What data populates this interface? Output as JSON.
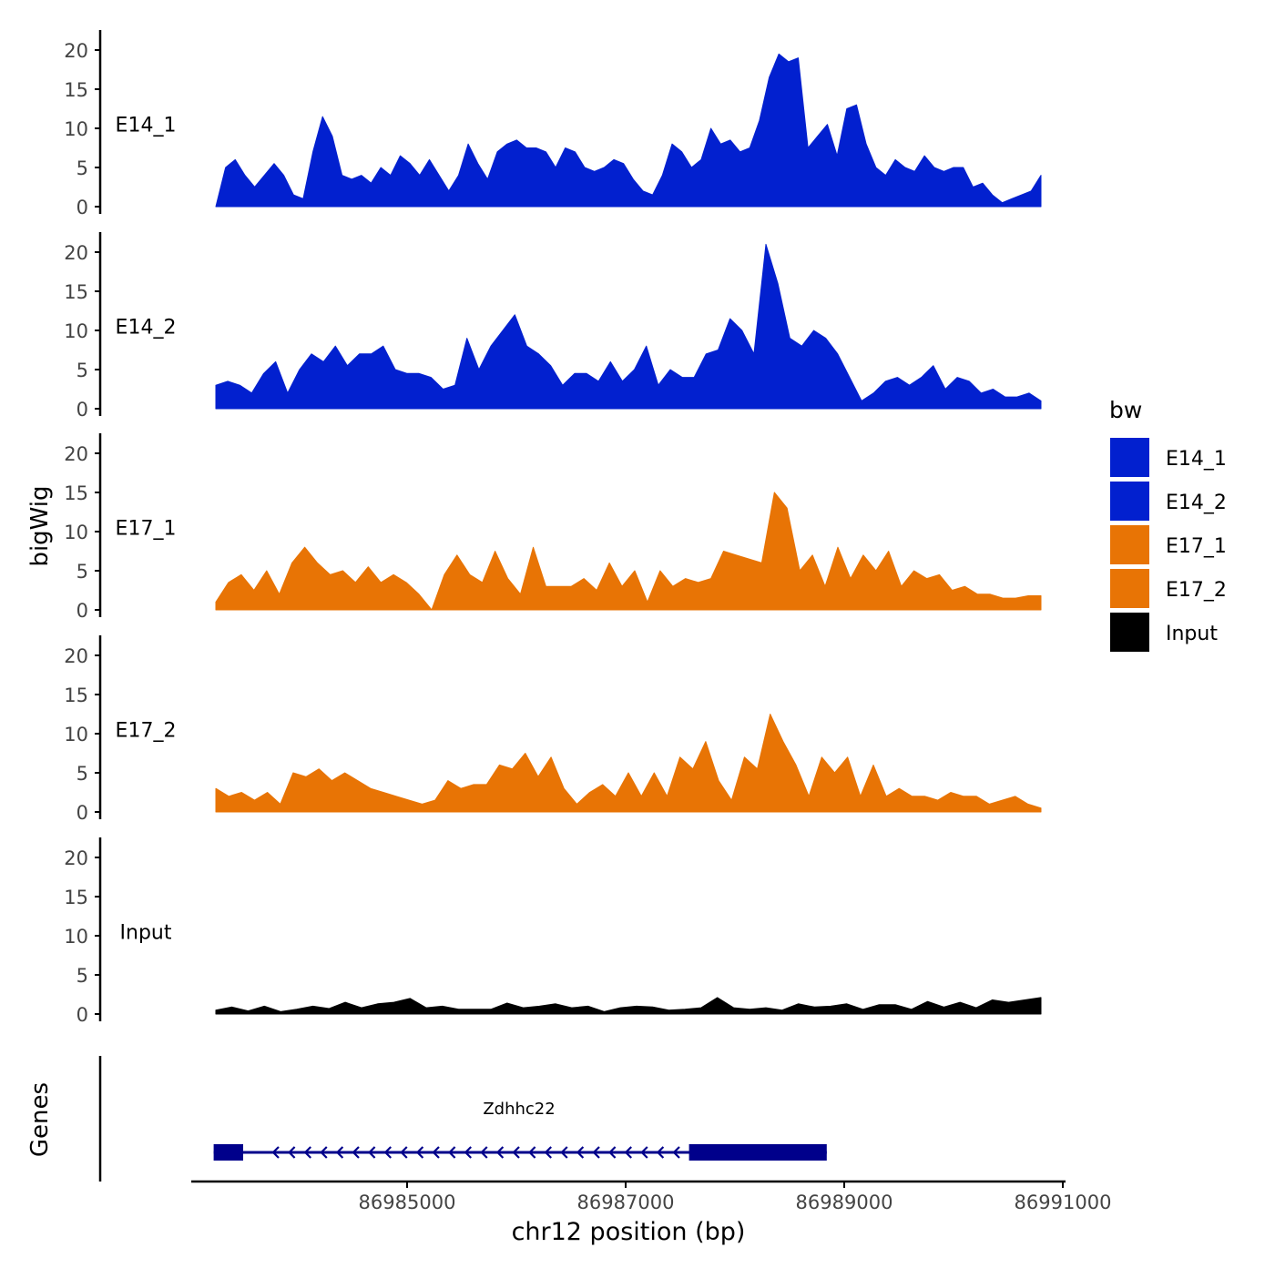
{
  "chart_data": {
    "type": "area",
    "y_axis_label": "bigWig",
    "x_axis_label": "chr12 position (bp)",
    "x_range": [
      86982000,
      86991000
    ],
    "y_range": [
      0,
      22
    ],
    "y_ticks": [
      "0",
      "5",
      "10",
      "15",
      "20"
    ],
    "x_ticks": [
      {
        "value": 86985000,
        "label": "86985000"
      },
      {
        "value": 86987000,
        "label": "86987000"
      },
      {
        "value": 86989000,
        "label": "86989000"
      },
      {
        "value": 86991000,
        "label": "86991000"
      }
    ],
    "track_start": 86983250,
    "track_end": 86990800,
    "legend": {
      "title": "bw",
      "items": [
        {
          "label": "E14_1",
          "color": "#0220CF"
        },
        {
          "label": "E14_2",
          "color": "#0220CF"
        },
        {
          "label": "E17_1",
          "color": "#E87405"
        },
        {
          "label": "E17_2",
          "color": "#E87405"
        },
        {
          "label": "Input",
          "color": "#000000"
        }
      ]
    },
    "series": [
      {
        "name": "E14_1",
        "color": "#0220CF",
        "values": [
          0,
          5,
          6,
          4,
          2.5,
          4,
          5.5,
          4,
          1.5,
          1,
          7,
          11.5,
          9,
          4,
          3.5,
          4,
          3,
          5,
          4,
          6.5,
          5.5,
          4,
          6,
          4,
          2,
          4,
          8,
          5.5,
          3.5,
          7,
          8,
          8.5,
          7.5,
          7.5,
          7,
          5,
          7.5,
          7,
          5,
          4.5,
          5,
          6,
          5.5,
          3.5,
          2,
          1.5,
          4,
          8,
          7,
          5,
          6,
          10,
          8,
          8.5,
          7,
          7.5,
          11,
          16.5,
          19.5,
          18.5,
          19,
          7.5,
          9,
          10.5,
          6.5,
          12.5,
          13,
          8,
          5,
          4,
          6,
          5,
          4.5,
          6.5,
          5,
          4.5,
          5,
          5,
          2.5,
          3,
          1.5,
          0.5,
          1,
          1.5,
          2,
          4
        ]
      },
      {
        "name": "E14_2",
        "color": "#0220CF",
        "values": [
          3,
          3.5,
          3,
          2,
          4.5,
          6,
          2,
          5,
          7,
          6,
          8,
          5.5,
          7,
          7,
          8,
          5,
          4.5,
          4.5,
          4,
          2.5,
          3,
          9,
          5,
          8,
          10,
          12,
          8,
          7,
          5.5,
          3,
          4.5,
          4.5,
          3.5,
          6,
          3.5,
          5,
          8,
          3,
          5,
          4,
          4,
          7,
          7.5,
          11.5,
          10,
          7,
          21,
          16,
          9,
          8,
          10,
          9,
          7,
          4,
          1,
          2,
          3.5,
          4,
          3,
          4,
          5.5,
          2.5,
          4,
          3.5,
          2,
          2.5,
          1.5,
          1.5,
          2,
          1
        ]
      },
      {
        "name": "E17_1",
        "color": "#E87405",
        "values": [
          1,
          3.5,
          4.5,
          2.5,
          5,
          2,
          6,
          8,
          6,
          4.5,
          5,
          3.5,
          5.5,
          3.5,
          4.5,
          3.5,
          2,
          0,
          4.5,
          7,
          4.5,
          3.5,
          7.5,
          4,
          2,
          8,
          3,
          3,
          3,
          4,
          2.5,
          6,
          3,
          5,
          1,
          5,
          3,
          4,
          3.5,
          4,
          7.5,
          7,
          6.5,
          6,
          15,
          13,
          5,
          7,
          3,
          8,
          4,
          7,
          5,
          7.5,
          3,
          5,
          4,
          4.5,
          2.5,
          3,
          2,
          2,
          1.5,
          1.5,
          1.8,
          1.8
        ]
      },
      {
        "name": "E17_2",
        "color": "#E87405",
        "values": [
          3,
          2,
          2.5,
          1.5,
          2.5,
          1,
          5,
          4.5,
          5.5,
          4,
          5,
          4,
          3,
          2.5,
          2,
          1.5,
          1,
          1.5,
          4,
          3,
          3.5,
          3.5,
          6,
          5.5,
          7.5,
          4.5,
          7,
          3,
          1,
          2.5,
          3.5,
          2,
          5,
          2,
          5,
          2,
          7,
          5.5,
          9,
          4,
          1.5,
          7,
          5.5,
          12.5,
          9,
          6,
          2,
          7,
          5,
          7,
          2,
          6,
          2,
          3,
          2,
          2,
          1.5,
          2.5,
          2,
          2,
          1,
          1.5,
          2,
          1,
          0.5
        ]
      },
      {
        "name": "Input",
        "color": "#000000",
        "values": [
          0.5,
          0.9,
          0.4,
          1,
          0.3,
          0.6,
          1,
          0.7,
          1.5,
          0.8,
          1.3,
          1.5,
          2,
          0.8,
          1,
          0.6,
          0.6,
          0.6,
          1.4,
          0.8,
          1,
          1.3,
          0.8,
          1,
          0.3,
          0.8,
          1,
          0.9,
          0.5,
          0.6,
          0.8,
          2.1,
          0.8,
          0.6,
          0.8,
          0.5,
          1.3,
          0.9,
          1,
          1.3,
          0.6,
          1.2,
          1.2,
          0.6,
          1.6,
          0.9,
          1.5,
          0.8,
          1.8,
          1.5,
          1.8,
          2.1
        ]
      }
    ],
    "gene_track": {
      "label": "Genes",
      "gene_name": "Zdhhc22",
      "strand": "-",
      "color": "#00008B",
      "line_start": 86983230,
      "line_end": 86988840,
      "exons": [
        [
          86983230,
          86983500
        ],
        [
          86987580,
          86988840
        ]
      ]
    }
  }
}
